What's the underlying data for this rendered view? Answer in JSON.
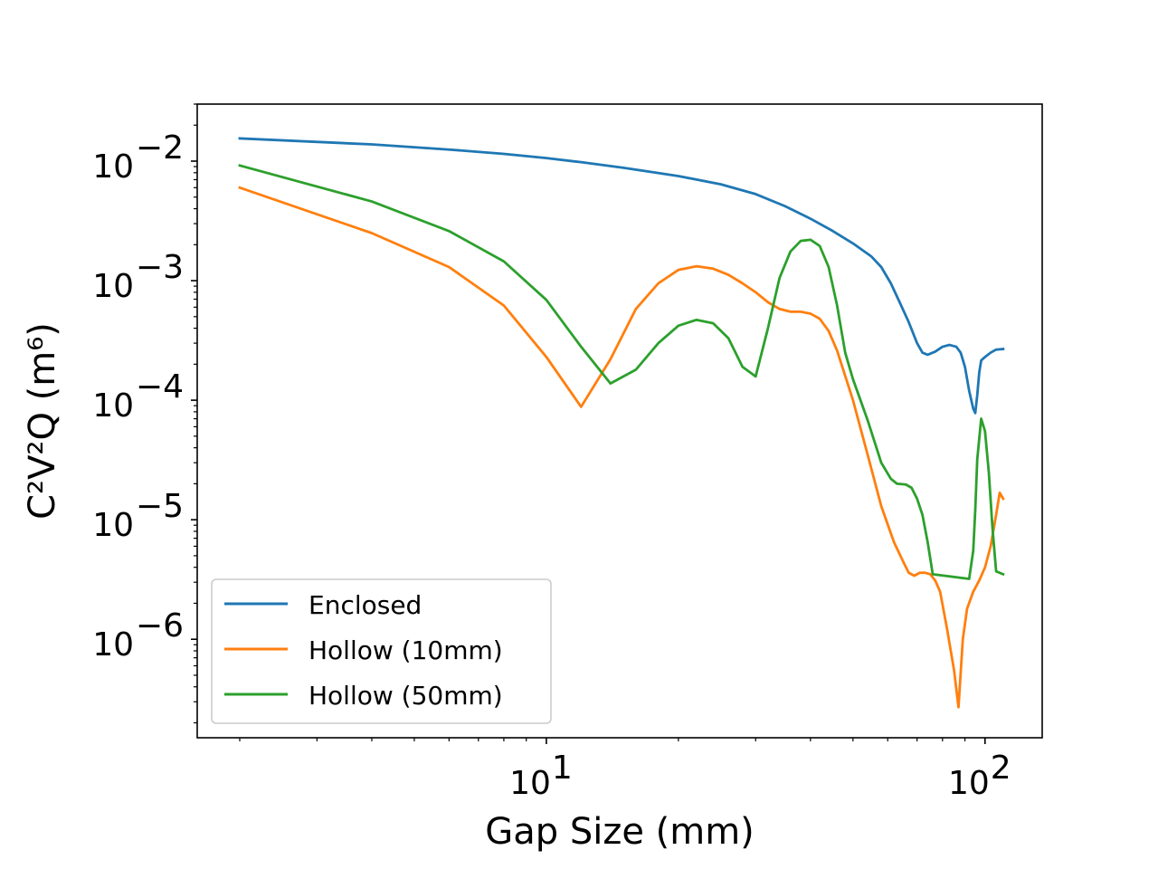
{
  "chart_data": {
    "type": "line",
    "title": "",
    "xlabel": "Gap Size (mm)",
    "ylabel": "C²V²Q (m⁶)",
    "xscale": "log",
    "yscale": "log",
    "xlim": [
      1.6,
      135
    ],
    "ylim": [
      1.5e-07,
      0.03
    ],
    "x_major_ticks": [
      {
        "value": 10,
        "base": "10",
        "exp": "1"
      },
      {
        "value": 100,
        "base": "10",
        "exp": "2"
      }
    ],
    "y_major_ticks": [
      {
        "value": 1e-06,
        "base": "10",
        "exp": "−6"
      },
      {
        "value": 1e-05,
        "base": "10",
        "exp": "−5"
      },
      {
        "value": 0.0001,
        "base": "10",
        "exp": "−4"
      },
      {
        "value": 0.001,
        "base": "10",
        "exp": "−3"
      },
      {
        "value": 0.01,
        "base": "10",
        "exp": "−2"
      }
    ],
    "grid": false,
    "legend_position": "lower-left",
    "series": [
      {
        "name": "Enclosed",
        "color": "#1f77b4",
        "points": [
          [
            2,
            0.0155
          ],
          [
            4,
            0.0138
          ],
          [
            6,
            0.0125
          ],
          [
            8,
            0.0115
          ],
          [
            10,
            0.0106
          ],
          [
            12,
            0.0098
          ],
          [
            15,
            0.0088
          ],
          [
            20,
            0.0075
          ],
          [
            25,
            0.0064
          ],
          [
            30,
            0.0053
          ],
          [
            35,
            0.0042
          ],
          [
            40,
            0.0033
          ],
          [
            45,
            0.0026
          ],
          [
            50,
            0.00205
          ],
          [
            55,
            0.0016
          ],
          [
            58,
            0.0013
          ],
          [
            61,
            0.00095
          ],
          [
            64,
            0.00065
          ],
          [
            67,
            0.00045
          ],
          [
            70,
            0.0003
          ],
          [
            72,
            0.00025
          ],
          [
            74,
            0.00024
          ],
          [
            77,
            0.000255
          ],
          [
            80,
            0.00028
          ],
          [
            83,
            0.00029
          ],
          [
            86,
            0.00028
          ],
          [
            88,
            0.00025
          ],
          [
            90,
            0.00019
          ],
          [
            92,
            0.00012
          ],
          [
            94,
            8.5e-05
          ],
          [
            95,
            7.8e-05
          ],
          [
            96,
            0.00011
          ],
          [
            97,
            0.00017
          ],
          [
            98,
            0.000215
          ],
          [
            100,
            0.00023
          ],
          [
            103,
            0.00025
          ],
          [
            106,
            0.000265
          ],
          [
            110,
            0.000268
          ]
        ]
      },
      {
        "name": "Hollow (10mm)",
        "color": "#ff7f0e",
        "points": [
          [
            2,
            0.006
          ],
          [
            4,
            0.0025
          ],
          [
            6,
            0.0013
          ],
          [
            8,
            0.00062
          ],
          [
            10,
            0.00023
          ],
          [
            12,
            8.8e-05
          ],
          [
            14,
            0.00022
          ],
          [
            16,
            0.00058
          ],
          [
            18,
            0.00095
          ],
          [
            20,
            0.00123
          ],
          [
            22,
            0.00132
          ],
          [
            24,
            0.00126
          ],
          [
            26,
            0.00112
          ],
          [
            28,
            0.00095
          ],
          [
            30,
            0.0008
          ],
          [
            32,
            0.00066
          ],
          [
            34,
            0.00058
          ],
          [
            36,
            0.00055
          ],
          [
            38,
            0.00055
          ],
          [
            40,
            0.00053
          ],
          [
            42,
            0.00048
          ],
          [
            44,
            0.00038
          ],
          [
            46,
            0.00026
          ],
          [
            50,
            0.0001
          ],
          [
            54,
            3.5e-05
          ],
          [
            58,
            1.3e-05
          ],
          [
            62,
            6.5e-06
          ],
          [
            65,
            4.5e-06
          ],
          [
            67,
            3.6e-06
          ],
          [
            69,
            3.4e-06
          ],
          [
            71,
            3.6e-06
          ],
          [
            73,
            3.6e-06
          ],
          [
            75,
            3.5e-06
          ],
          [
            77,
            3.1e-06
          ],
          [
            79,
            2.5e-06
          ],
          [
            82,
            1.2e-06
          ],
          [
            85,
            5.5e-07
          ],
          [
            87,
            2.7e-07
          ],
          [
            89,
            1e-06
          ],
          [
            91,
            1.8e-06
          ],
          [
            94,
            2.5e-06
          ],
          [
            97,
            3.1e-06
          ],
          [
            100,
            4e-06
          ],
          [
            103,
            6e-06
          ],
          [
            106,
            1.1e-05
          ],
          [
            108,
            1.68e-05
          ],
          [
            110,
            1.5e-05
          ]
        ]
      },
      {
        "name": "Hollow (50mm)",
        "color": "#2ca02c",
        "points": [
          [
            2,
            0.0092
          ],
          [
            4,
            0.0046
          ],
          [
            6,
            0.0026
          ],
          [
            8,
            0.00145
          ],
          [
            10,
            0.00069
          ],
          [
            12,
            0.00028
          ],
          [
            14,
            0.000138
          ],
          [
            16,
            0.00018
          ],
          [
            18,
            0.0003
          ],
          [
            20,
            0.00042
          ],
          [
            22,
            0.00047
          ],
          [
            24,
            0.00044
          ],
          [
            26,
            0.00033
          ],
          [
            28,
            0.00019
          ],
          [
            30,
            0.000158
          ],
          [
            32,
            0.0004
          ],
          [
            34,
            0.00105
          ],
          [
            36,
            0.00175
          ],
          [
            38,
            0.00215
          ],
          [
            40,
            0.0022
          ],
          [
            42,
            0.00195
          ],
          [
            44,
            0.0013
          ],
          [
            46,
            0.00062
          ],
          [
            48,
            0.00025
          ],
          [
            50,
            0.00015
          ],
          [
            54,
            6.8e-05
          ],
          [
            58,
            3e-05
          ],
          [
            61,
            2.2e-05
          ],
          [
            63,
            2e-05
          ],
          [
            66,
            1.97e-05
          ],
          [
            68,
            1.85e-05
          ],
          [
            70,
            1.5e-05
          ],
          [
            72,
            1.1e-05
          ],
          [
            74,
            6.5e-06
          ],
          [
            76,
            3.5e-06
          ],
          [
            92,
            3.2e-06
          ],
          [
            94,
            5.5e-06
          ],
          [
            95,
            1.2e-05
          ],
          [
            96,
            3.2e-05
          ],
          [
            98,
            7e-05
          ],
          [
            100,
            5.5e-05
          ],
          [
            102,
            2.5e-05
          ],
          [
            104,
            8.5e-06
          ],
          [
            106,
            3.7e-06
          ],
          [
            110,
            3.5e-06
          ]
        ]
      }
    ]
  }
}
